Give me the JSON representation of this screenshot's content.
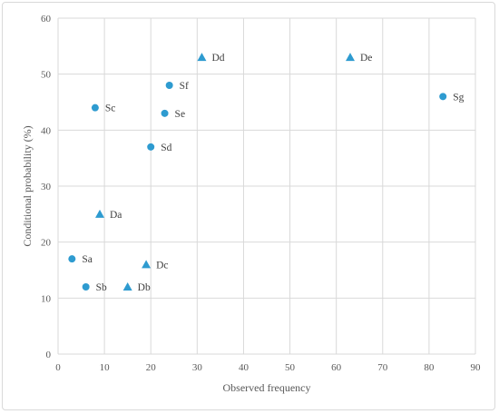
{
  "chart_data": {
    "type": "scatter",
    "title": "",
    "xlabel": "Observed frequency",
    "ylabel": "Conditional probability (%)",
    "xlim": [
      0,
      90
    ],
    "ylim": [
      0,
      60
    ],
    "x_ticks": [
      0,
      10,
      20,
      30,
      40,
      50,
      60,
      70,
      80,
      90
    ],
    "y_ticks": [
      0,
      10,
      20,
      30,
      40,
      50,
      60
    ],
    "grid": true,
    "legend": "none",
    "color": "#2E9BD0",
    "series": [
      {
        "marker": "circle",
        "points": [
          {
            "label": "Sa",
            "x": 3,
            "y": 17
          },
          {
            "label": "Sb",
            "x": 6,
            "y": 12
          },
          {
            "label": "Sc",
            "x": 8,
            "y": 44
          },
          {
            "label": "Sd",
            "x": 20,
            "y": 37
          },
          {
            "label": "Se",
            "x": 23,
            "y": 43
          },
          {
            "label": "Sf",
            "x": 24,
            "y": 48
          },
          {
            "label": "Sg",
            "x": 83,
            "y": 46
          }
        ]
      },
      {
        "marker": "triangle",
        "points": [
          {
            "label": "Da",
            "x": 9,
            "y": 25
          },
          {
            "label": "Db",
            "x": 15,
            "y": 12
          },
          {
            "label": "Dc",
            "x": 19,
            "y": 16
          },
          {
            "label": "Dd",
            "x": 31,
            "y": 53
          },
          {
            "label": "De",
            "x": 63,
            "y": 53
          }
        ]
      }
    ]
  }
}
